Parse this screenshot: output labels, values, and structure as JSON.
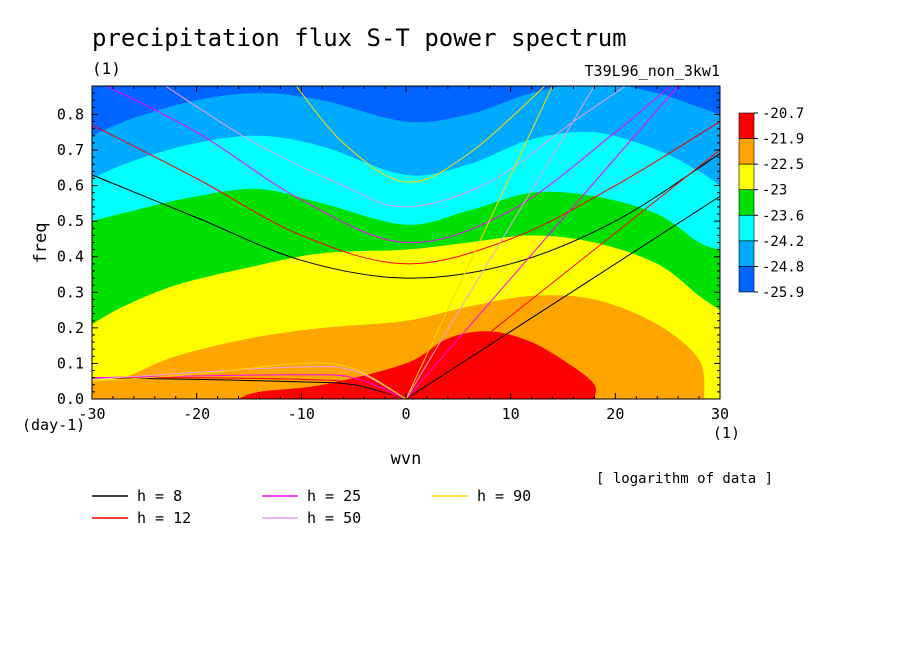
{
  "chart_data": {
    "type": "heatmap",
    "title": "precipitation flux S-T power spectrum",
    "subtitle_left": "(1)",
    "subtitle_right": "T39L96_non_3kw1",
    "xlabel": "wvn",
    "ylabel": "freq",
    "x_unit": "(1)",
    "y_unit": "(day-1)",
    "xlim": [
      -30,
      30
    ],
    "ylim": [
      0,
      0.88
    ],
    "xticks": [
      -30,
      -20,
      -10,
      0,
      10,
      20,
      30
    ],
    "yticks": [
      0.0,
      0.1,
      0.2,
      0.3,
      0.4,
      0.5,
      0.6,
      0.7,
      0.8
    ],
    "note": "[ logarithm of data ]",
    "colorbar": {
      "labels": [
        "-20.7",
        "-21.9",
        "-22.5",
        "-23",
        "-23.6",
        "-24.2",
        "-24.8",
        "-25.9"
      ],
      "colors": [
        "#ff0000",
        "#ffa500",
        "#ffff00",
        "#00e000",
        "#00ffff",
        "#00aaff",
        "#0064ff"
      ]
    },
    "contours": [
      {
        "level": -21.9,
        "color": "#ff0000",
        "points": [
          [
            -16,
            0
          ],
          [
            -14,
            0.02
          ],
          [
            -8,
            0.04
          ],
          [
            0,
            0.1
          ],
          [
            4,
            0.17
          ],
          [
            8,
            0.19
          ],
          [
            12,
            0.16
          ],
          [
            16,
            0.09
          ],
          [
            18,
            0.04
          ],
          [
            18,
            0
          ]
        ]
      },
      {
        "level": -22.5,
        "color": "#ffa500",
        "points": [
          [
            -30,
            0.05
          ],
          [
            -27,
            0.06
          ],
          [
            -22,
            0.12
          ],
          [
            -15,
            0.17
          ],
          [
            -8,
            0.2
          ],
          [
            0,
            0.22
          ],
          [
            6,
            0.26
          ],
          [
            12,
            0.29
          ],
          [
            18,
            0.28
          ],
          [
            24,
            0.21
          ],
          [
            28,
            0.11
          ],
          [
            28.5,
            0
          ]
        ]
      },
      {
        "level": -23,
        "color": "#ffff00",
        "points": [
          [
            -30,
            0.21
          ],
          [
            -27,
            0.26
          ],
          [
            -22,
            0.32
          ],
          [
            -15,
            0.37
          ],
          [
            -8,
            0.41
          ],
          [
            0,
            0.42
          ],
          [
            6,
            0.44
          ],
          [
            12,
            0.46
          ],
          [
            18,
            0.44
          ],
          [
            24,
            0.38
          ],
          [
            28,
            0.29
          ],
          [
            30,
            0.25
          ]
        ]
      },
      {
        "level": -23.6,
        "color": "#00e000",
        "points": [
          [
            -30,
            0.5
          ],
          [
            -26,
            0.53
          ],
          [
            -20,
            0.57
          ],
          [
            -14,
            0.59
          ],
          [
            -8,
            0.55
          ],
          [
            0,
            0.49
          ],
          [
            6,
            0.53
          ],
          [
            12,
            0.58
          ],
          [
            18,
            0.57
          ],
          [
            24,
            0.52
          ],
          [
            28,
            0.44
          ],
          [
            30,
            0.42
          ]
        ]
      },
      {
        "level": -24.2,
        "color": "#00ffff",
        "points": [
          [
            -30,
            0.62
          ],
          [
            -26,
            0.67
          ],
          [
            -20,
            0.72
          ],
          [
            -14,
            0.74
          ],
          [
            -8,
            0.71
          ],
          [
            0,
            0.63
          ],
          [
            6,
            0.66
          ],
          [
            12,
            0.73
          ],
          [
            18,
            0.75
          ],
          [
            24,
            0.7
          ],
          [
            28,
            0.64
          ],
          [
            30,
            0.6
          ]
        ]
      },
      {
        "level": -24.8,
        "color": "#00aaff",
        "points": [
          [
            -30,
            0.74
          ],
          [
            -26,
            0.79
          ],
          [
            -20,
            0.84
          ],
          [
            -14,
            0.86
          ],
          [
            -8,
            0.84
          ],
          [
            0,
            0.78
          ],
          [
            6,
            0.8
          ],
          [
            12,
            0.86
          ],
          [
            18,
            0.89
          ],
          [
            24,
            0.86
          ],
          [
            28,
            0.82
          ],
          [
            30,
            0.8
          ]
        ]
      }
    ],
    "legend": [
      {
        "label": "h =  8",
        "color": "#000000"
      },
      {
        "label": "h = 12",
        "color": "#ff0000"
      },
      {
        "label": "h = 25",
        "color": "#ff00ff"
      },
      {
        "label": "h = 50",
        "color": "#e8a0e8"
      },
      {
        "label": "h = 90",
        "color": "#ffd700"
      }
    ],
    "dispersion_curves": [
      {
        "h": 8,
        "color": "#000000",
        "kelvin": [
          [
            0,
            0
          ],
          [
            30,
            0.57
          ]
        ],
        "er": [
          [
            -30,
            0.06
          ],
          [
            -20,
            0.055
          ],
          [
            -10,
            0.048
          ],
          [
            -5,
            0.04
          ],
          [
            0,
            0
          ]
        ],
        "ig": [
          [
            -30,
            0.63
          ],
          [
            -20,
            0.51
          ],
          [
            -10,
            0.39
          ],
          [
            0,
            0.34
          ],
          [
            10,
            0.38
          ],
          [
            20,
            0.5
          ],
          [
            30,
            0.69
          ]
        ]
      },
      {
        "h": 12,
        "color": "#ff0000",
        "kelvin": [
          [
            0,
            0
          ],
          [
            30,
            0.7
          ]
        ],
        "er": [
          [
            -30,
            0.06
          ],
          [
            -20,
            0.06
          ],
          [
            -10,
            0.055
          ],
          [
            -5,
            0.045
          ],
          [
            0,
            0
          ]
        ],
        "ig": [
          [
            -30,
            0.77
          ],
          [
            -20,
            0.62
          ],
          [
            -10,
            0.46
          ],
          [
            0,
            0.38
          ],
          [
            10,
            0.45
          ],
          [
            20,
            0.6
          ],
          [
            30,
            0.78
          ]
        ]
      },
      {
        "h": 25,
        "color": "#ff00ff",
        "kelvin": [
          [
            0,
            0
          ],
          [
            26,
            0.88
          ]
        ],
        "er": [
          [
            -30,
            0.06
          ],
          [
            -20,
            0.065
          ],
          [
            -10,
            0.068
          ],
          [
            -5,
            0.06
          ],
          [
            0,
            0
          ]
        ],
        "ig": [
          [
            -30,
            0.9
          ],
          [
            -20,
            0.75
          ],
          [
            -10,
            0.56
          ],
          [
            0,
            0.44
          ],
          [
            10,
            0.53
          ],
          [
            20,
            0.75
          ],
          [
            26,
            0.9
          ]
        ]
      },
      {
        "h": 50,
        "color": "#e8a0e8",
        "kelvin": [
          [
            0,
            0
          ],
          [
            18,
            0.88
          ]
        ],
        "er": [
          [
            -30,
            0.055
          ],
          [
            -20,
            0.075
          ],
          [
            -10,
            0.09
          ],
          [
            -5,
            0.08
          ],
          [
            0,
            0
          ]
        ],
        "ig": [
          [
            -24,
            0.9
          ],
          [
            -15,
            0.73
          ],
          [
            -6,
            0.6
          ],
          [
            0,
            0.54
          ],
          [
            8,
            0.61
          ],
          [
            16,
            0.78
          ],
          [
            22,
            0.9
          ]
        ]
      },
      {
        "h": 90,
        "color": "#ffd700",
        "kelvin": [
          [
            0,
            0
          ],
          [
            14,
            0.88
          ]
        ],
        "er": [
          [
            -30,
            0.05
          ],
          [
            -20,
            0.07
          ],
          [
            -10,
            0.1
          ],
          [
            -5,
            0.085
          ],
          [
            0,
            0
          ]
        ],
        "ig": [
          [
            -11,
            0.9
          ],
          [
            -6,
            0.72
          ],
          [
            0,
            0.61
          ],
          [
            6,
            0.69
          ],
          [
            14,
            0.9
          ]
        ]
      }
    ]
  }
}
